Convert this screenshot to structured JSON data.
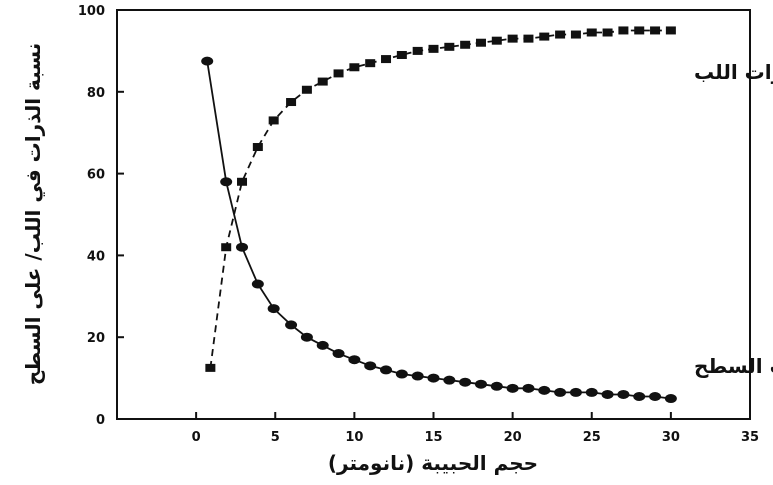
{
  "chart_data": {
    "type": "line",
    "title": "",
    "xlabel": "حجم الحبيبة (نانومتر)",
    "ylabel": "نسبة الذرات في اللب/ على السطح",
    "xlim": [
      -5,
      35
    ],
    "ylim": [
      0,
      100
    ],
    "x_ticks": [
      0,
      5,
      10,
      15,
      20,
      25,
      30,
      35
    ],
    "y_ticks": [
      0,
      20,
      40,
      60,
      80,
      100
    ],
    "grid": false,
    "series": [
      {
        "name": "ذرات اللب",
        "marker": "square",
        "line_style": "dashed",
        "color": "#111111",
        "x": [
          0.9,
          1.9,
          2.9,
          3.9,
          4.9,
          6,
          7,
          8,
          9,
          10,
          11,
          12,
          13,
          14,
          15,
          16,
          17,
          18,
          19,
          20,
          21,
          22,
          23,
          24,
          25,
          26,
          27,
          28,
          29,
          30
        ],
        "y": [
          12.5,
          42,
          58,
          66.5,
          73,
          77.5,
          80.5,
          82.5,
          84.5,
          86,
          87,
          88,
          89,
          90,
          90.5,
          91,
          91.5,
          92,
          92.5,
          93,
          93,
          93.5,
          94,
          94,
          94.5,
          94.5,
          95,
          95,
          95,
          95
        ]
      },
      {
        "name": "ذرات السطح",
        "marker": "circle",
        "line_style": "solid",
        "color": "#111111",
        "x": [
          0.7,
          1.9,
          2.9,
          3.9,
          4.9,
          6,
          7,
          8,
          9,
          10,
          11,
          12,
          13,
          14,
          15,
          16,
          17,
          18,
          19,
          20,
          21,
          22,
          23,
          24,
          25,
          26,
          27,
          28,
          29,
          30
        ],
        "y": [
          87.5,
          58,
          42,
          33,
          27,
          23,
          20,
          18,
          16,
          14.5,
          13,
          12,
          11,
          10.5,
          10,
          9.5,
          9,
          8.5,
          8,
          7.5,
          7.5,
          7,
          6.5,
          6.5,
          6.5,
          6,
          6,
          5.5,
          5.5,
          5
        ]
      }
    ],
    "tick_labels_y": [
      "0",
      "20",
      "40",
      "60",
      "80",
      "100"
    ],
    "tick_labels_x": [
      "0",
      "5",
      "10",
      "15",
      "20",
      "25",
      "30",
      "35"
    ]
  }
}
